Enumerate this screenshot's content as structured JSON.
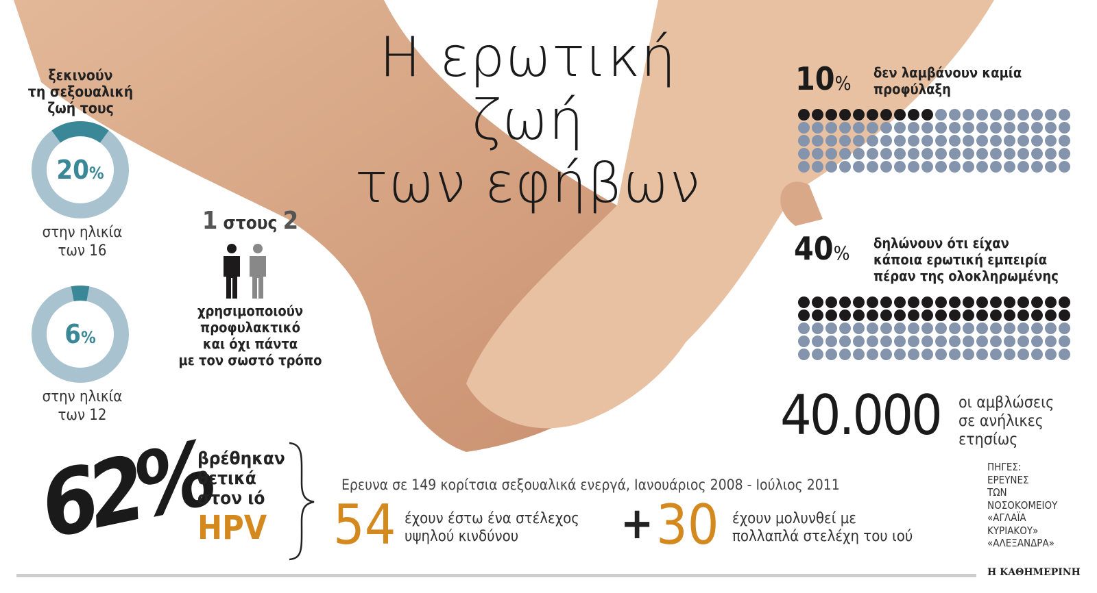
{
  "title": {
    "line1": "Η ερωτική ζωή",
    "line2": "των εφήβων"
  },
  "colors": {
    "teal": "#3a8797",
    "teal_light": "#a8c3cf",
    "dot_dark": "#1c1a1b",
    "dot_light": "#8494ad",
    "orange": "#d4891f"
  },
  "start": {
    "heading": [
      "ξεκινούν",
      "τη σεξουαλική",
      "ζωή τους"
    ]
  },
  "chart_data": [
    {
      "type": "pie",
      "style": "donut",
      "value": 20,
      "label": "20",
      "unit": "%",
      "caption": [
        "στην ηλικία",
        "των 16"
      ]
    },
    {
      "type": "pie",
      "style": "donut",
      "value": 6,
      "label": "6",
      "unit": "%",
      "caption": [
        "στην ηλικία",
        "των 12"
      ]
    },
    {
      "type": "dot-matrix",
      "total": 100,
      "filled": 10,
      "value": "10",
      "unit": "%",
      "text": [
        "δεν λαμβάνουν καμία",
        "προφύλαξη"
      ]
    },
    {
      "type": "dot-matrix",
      "total": 100,
      "filled": 40,
      "value": "40",
      "unit": "%",
      "text": [
        "δηλώνουν ότι είχαν",
        "κάποια ερωτική εμπειρία",
        "πέραν της ολοκληρωμένης"
      ]
    }
  ],
  "ratio": {
    "a": "1",
    "mid": "στους",
    "b": "2",
    "text": [
      "χρησιμοποιούν",
      "προφυλακτικό",
      "και όχι πάντα",
      "με τον σωστό τρόπο"
    ],
    "icon": "person-icon"
  },
  "abortions": {
    "value": "40.000",
    "text": [
      "οι αμβλώσεις",
      "σε ανήλικες",
      "ετησίως"
    ]
  },
  "hpv": {
    "value": "62%",
    "text": [
      "βρέθηκαν",
      "θετικά",
      "στον ιό"
    ],
    "virus": "HPV",
    "survey": "Ερευνα σε 149 κορίτσια σεξουαλικά ενεργά, Ιανουάριος 2008 - Ιούλιος 2011",
    "n1": "54",
    "t1": [
      "έχουν έστω ένα στέλεχος",
      "υψηλού κινδύνου"
    ],
    "plus": "+",
    "n2": "30",
    "t2": [
      "έχουν μολυνθεί με",
      "πολλαπλά στελέχη του ιού"
    ]
  },
  "sources": [
    "ΠΗΓΕΣ:",
    "ΕΡΕΥΝΕΣ",
    "ΤΩΝ",
    "ΝΟΣΟΚΟΜΕΙΟΥ",
    "«ΑΓΛΑΪΑ",
    "ΚΥΡΙΑΚΟΥ»",
    "«ΑΛΕΞΑΝΔΡΑ»"
  ],
  "brand": "Η ΚΑΘΗΜΕΡΙΝΗ"
}
